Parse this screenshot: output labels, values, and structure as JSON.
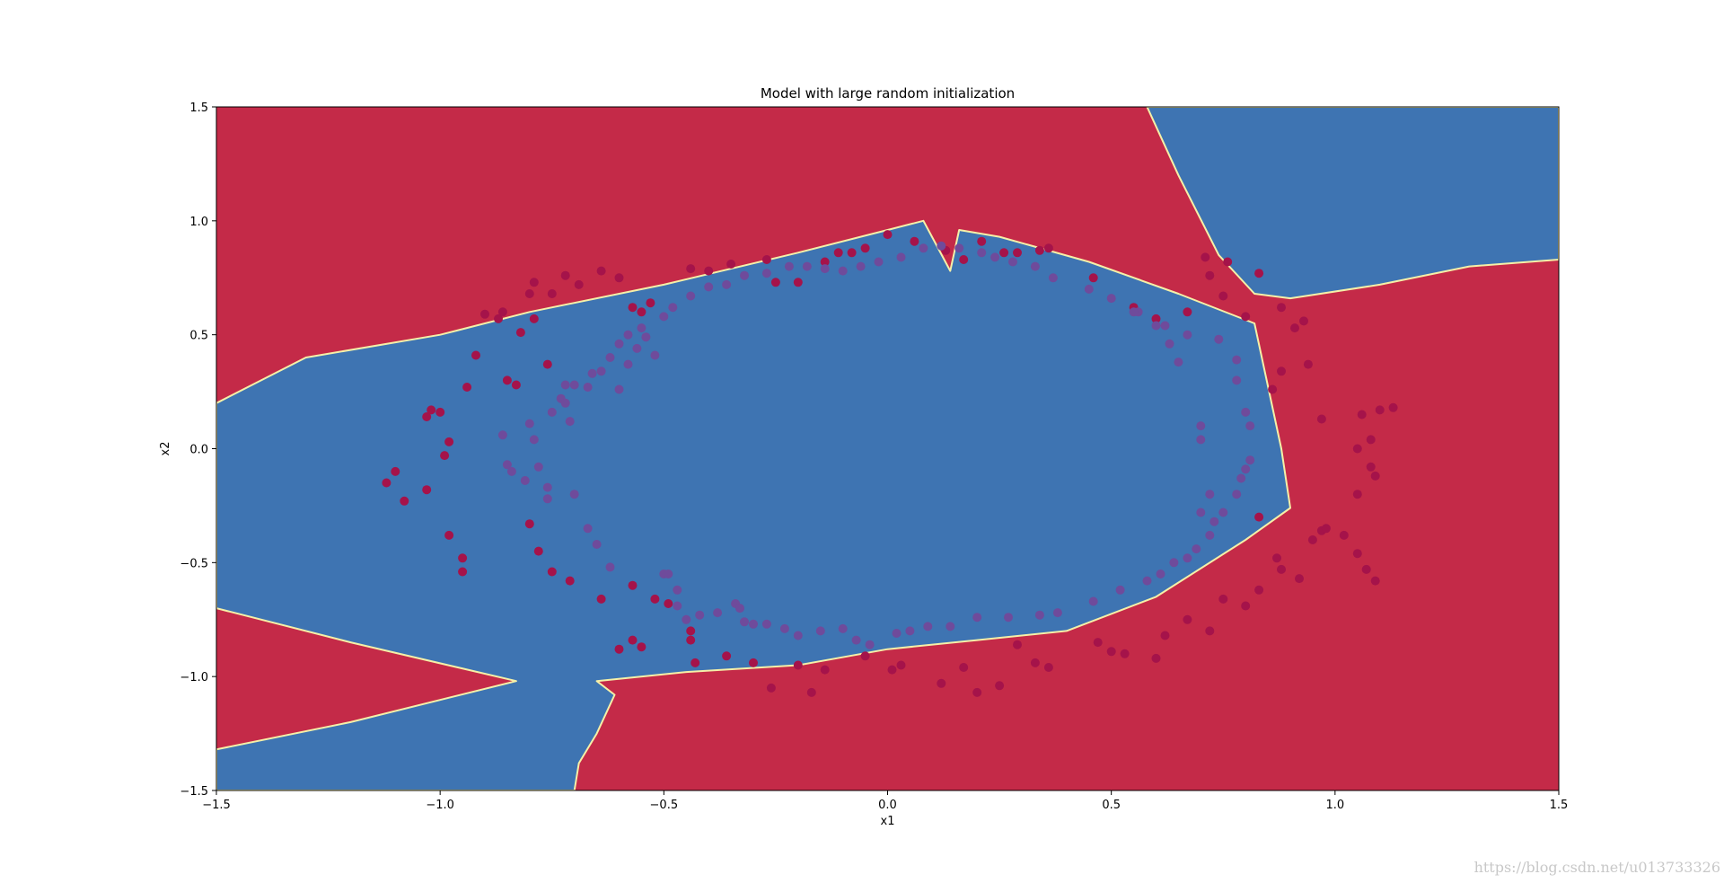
{
  "chart_data": {
    "type": "scatter",
    "title": "Model with large random initialization",
    "xlabel": "x1",
    "ylabel": "x2",
    "xlim": [
      -1.5,
      1.5
    ],
    "ylim": [
      -1.5,
      1.5
    ],
    "xticks": [
      "−1.5",
      "−1.0",
      "−0.5",
      "0.0",
      "0.5",
      "1.0",
      "1.5"
    ],
    "yticks": [
      "1.5",
      "1.0",
      "0.5",
      "0.0",
      "−0.5",
      "−1.0",
      "−1.5"
    ],
    "grid": false,
    "background_class_color": "#C42A48",
    "region_class_color": "#3E74B2",
    "boundary_color": "#F5F0A8",
    "decision_regions": [
      {
        "class": 1,
        "polygon": [
          [
            -1.5,
            0.2
          ],
          [
            -1.3,
            0.4
          ],
          [
            -1.0,
            0.5
          ],
          [
            -0.8,
            0.6
          ],
          [
            -0.5,
            0.72
          ],
          [
            -0.2,
            0.86
          ],
          [
            0.0,
            0.96
          ],
          [
            0.08,
            1.0
          ],
          [
            0.14,
            0.78
          ],
          [
            0.16,
            0.96
          ],
          [
            0.25,
            0.93
          ],
          [
            0.45,
            0.82
          ],
          [
            0.65,
            0.68
          ],
          [
            0.82,
            0.55
          ],
          [
            0.88,
            0.0
          ],
          [
            0.9,
            -0.26
          ],
          [
            0.8,
            -0.4
          ],
          [
            0.6,
            -0.65
          ],
          [
            0.4,
            -0.8
          ],
          [
            0.2,
            -0.84
          ],
          [
            0.0,
            -0.88
          ],
          [
            -0.2,
            -0.95
          ],
          [
            -0.45,
            -0.98
          ],
          [
            -0.65,
            -1.02
          ],
          [
            -0.61,
            -1.08
          ],
          [
            -0.65,
            -1.25
          ],
          [
            -0.69,
            -1.38
          ],
          [
            -0.7,
            -1.5
          ],
          [
            -1.5,
            -1.5
          ],
          [
            -1.5,
            -1.32
          ],
          [
            -1.2,
            -1.2
          ],
          [
            -0.83,
            -1.02
          ],
          [
            -1.2,
            -0.85
          ],
          [
            -1.5,
            -0.7
          ]
        ]
      },
      {
        "class": 1,
        "polygon": [
          [
            0.58,
            1.5
          ],
          [
            1.5,
            1.5
          ],
          [
            1.5,
            0.83
          ],
          [
            1.3,
            0.8
          ],
          [
            1.1,
            0.72
          ],
          [
            0.9,
            0.66
          ],
          [
            0.82,
            0.68
          ],
          [
            0.74,
            0.85
          ],
          [
            0.65,
            1.2
          ]
        ]
      }
    ],
    "series": [
      {
        "class": 0,
        "color": "#A5134A",
        "points": [
          [
            -1.1,
            -0.1
          ],
          [
            -1.12,
            -0.15
          ],
          [
            -1.08,
            -0.23
          ],
          [
            -1.03,
            -0.18
          ],
          [
            -1.03,
            0.14
          ],
          [
            -1.02,
            0.17
          ],
          [
            -1.0,
            0.16
          ],
          [
            -0.98,
            0.03
          ],
          [
            -0.99,
            -0.03
          ],
          [
            -0.98,
            -0.38
          ],
          [
            -0.95,
            -0.48
          ],
          [
            -0.95,
            -0.54
          ],
          [
            -0.92,
            0.41
          ],
          [
            -0.94,
            0.27
          ],
          [
            -0.9,
            0.59
          ],
          [
            -0.87,
            0.57
          ],
          [
            -0.86,
            0.6
          ],
          [
            -0.85,
            0.3
          ],
          [
            -0.83,
            0.28
          ],
          [
            -0.82,
            0.51
          ],
          [
            -0.79,
            0.73
          ],
          [
            -0.79,
            0.57
          ],
          [
            -0.76,
            0.37
          ],
          [
            -0.8,
            -0.33
          ],
          [
            -0.78,
            -0.45
          ],
          [
            -0.75,
            -0.54
          ],
          [
            -0.71,
            -0.58
          ],
          [
            -0.64,
            -0.66
          ],
          [
            -0.57,
            -0.6
          ],
          [
            -0.52,
            -0.66
          ],
          [
            -0.49,
            -0.68
          ],
          [
            -0.6,
            -0.88
          ],
          [
            -0.57,
            -0.84
          ],
          [
            -0.55,
            -0.87
          ],
          [
            -0.44,
            -0.8
          ],
          [
            -0.44,
            -0.84
          ],
          [
            -0.43,
            -0.94
          ],
          [
            -0.36,
            -0.91
          ],
          [
            -0.3,
            -0.94
          ],
          [
            -0.26,
            -1.05
          ],
          [
            -0.2,
            -0.95
          ],
          [
            -0.17,
            -1.07
          ],
          [
            -0.14,
            -0.97
          ],
          [
            -0.05,
            -0.91
          ],
          [
            0.01,
            -0.97
          ],
          [
            0.03,
            -0.95
          ],
          [
            0.12,
            -1.03
          ],
          [
            0.17,
            -0.96
          ],
          [
            0.2,
            -1.07
          ],
          [
            0.25,
            -1.04
          ],
          [
            0.29,
            -0.86
          ],
          [
            0.33,
            -0.94
          ],
          [
            0.36,
            -0.96
          ],
          [
            0.47,
            -0.85
          ],
          [
            0.5,
            -0.89
          ],
          [
            0.53,
            -0.9
          ],
          [
            0.6,
            -0.92
          ],
          [
            0.62,
            -0.82
          ],
          [
            0.67,
            -0.75
          ],
          [
            0.72,
            -0.8
          ],
          [
            0.75,
            -0.66
          ],
          [
            0.8,
            -0.69
          ],
          [
            0.83,
            -0.62
          ],
          [
            0.87,
            -0.48
          ],
          [
            0.88,
            -0.53
          ],
          [
            0.92,
            -0.57
          ],
          [
            0.95,
            -0.4
          ],
          [
            0.97,
            -0.36
          ],
          [
            0.98,
            -0.35
          ],
          [
            1.02,
            -0.38
          ],
          [
            1.05,
            -0.46
          ],
          [
            1.07,
            -0.53
          ],
          [
            1.09,
            -0.58
          ],
          [
            0.83,
            -0.3
          ],
          [
            0.86,
            0.26
          ],
          [
            0.88,
            0.34
          ],
          [
            0.91,
            0.53
          ],
          [
            0.93,
            0.56
          ],
          [
            0.94,
            0.37
          ],
          [
            1.05,
            -0.2
          ],
          [
            1.08,
            -0.08
          ],
          [
            1.09,
            -0.12
          ],
          [
            1.05,
            0.0
          ],
          [
            1.06,
            0.15
          ],
          [
            1.08,
            0.04
          ],
          [
            1.1,
            0.17
          ],
          [
            1.13,
            0.18
          ],
          [
            0.97,
            0.13
          ],
          [
            0.88,
            0.62
          ],
          [
            0.8,
            0.58
          ],
          [
            0.83,
            0.77
          ],
          [
            0.76,
            0.82
          ],
          [
            0.71,
            0.84
          ],
          [
            0.72,
            0.76
          ],
          [
            0.75,
            0.67
          ],
          [
            0.67,
            0.6
          ],
          [
            0.6,
            0.57
          ],
          [
            0.55,
            0.62
          ],
          [
            0.46,
            0.75
          ],
          [
            0.36,
            0.88
          ],
          [
            0.34,
            0.87
          ],
          [
            0.29,
            0.86
          ],
          [
            0.26,
            0.86
          ],
          [
            0.21,
            0.91
          ],
          [
            0.17,
            0.83
          ],
          [
            0.13,
            0.87
          ],
          [
            0.06,
            0.91
          ],
          [
            0.0,
            0.94
          ],
          [
            -0.05,
            0.88
          ],
          [
            -0.08,
            0.86
          ],
          [
            -0.11,
            0.86
          ],
          [
            -0.14,
            0.82
          ],
          [
            -0.2,
            0.73
          ],
          [
            -0.25,
            0.73
          ],
          [
            -0.27,
            0.83
          ],
          [
            -0.35,
            0.81
          ],
          [
            -0.4,
            0.78
          ],
          [
            -0.44,
            0.79
          ],
          [
            -0.53,
            0.64
          ],
          [
            -0.55,
            0.6
          ],
          [
            -0.57,
            0.62
          ],
          [
            -0.6,
            0.75
          ],
          [
            -0.64,
            0.78
          ],
          [
            -0.69,
            0.72
          ],
          [
            -0.72,
            0.76
          ],
          [
            -0.75,
            0.68
          ],
          [
            -0.8,
            0.68
          ]
        ]
      },
      {
        "class": 1,
        "color": "#6F4B9B",
        "points": [
          [
            -0.86,
            0.06
          ],
          [
            -0.85,
            -0.07
          ],
          [
            -0.81,
            -0.14
          ],
          [
            -0.8,
            0.11
          ],
          [
            -0.79,
            0.04
          ],
          [
            -0.78,
            -0.08
          ],
          [
            -0.76,
            -0.17
          ],
          [
            -0.76,
            -0.22
          ],
          [
            -0.75,
            0.16
          ],
          [
            -0.73,
            0.22
          ],
          [
            -0.72,
            0.28
          ],
          [
            -0.71,
            0.12
          ],
          [
            -0.7,
            -0.2
          ],
          [
            -0.67,
            -0.35
          ],
          [
            -0.65,
            -0.42
          ],
          [
            -0.62,
            -0.52
          ],
          [
            -0.6,
            0.26
          ],
          [
            -0.58,
            0.37
          ],
          [
            -0.56,
            0.44
          ],
          [
            -0.54,
            0.49
          ],
          [
            -0.52,
            0.41
          ],
          [
            -0.5,
            -0.55
          ],
          [
            -0.49,
            -0.55
          ],
          [
            -0.47,
            -0.62
          ],
          [
            -0.47,
            -0.69
          ],
          [
            -0.45,
            -0.75
          ],
          [
            -0.42,
            -0.73
          ],
          [
            -0.38,
            -0.72
          ],
          [
            -0.34,
            -0.68
          ],
          [
            -0.33,
            -0.7
          ],
          [
            -0.32,
            -0.76
          ],
          [
            -0.3,
            -0.77
          ],
          [
            -0.27,
            -0.77
          ],
          [
            -0.23,
            -0.79
          ],
          [
            -0.2,
            -0.82
          ],
          [
            -0.15,
            -0.8
          ],
          [
            -0.1,
            -0.79
          ],
          [
            -0.07,
            -0.84
          ],
          [
            -0.04,
            -0.86
          ],
          [
            0.02,
            -0.81
          ],
          [
            0.05,
            -0.8
          ],
          [
            0.09,
            -0.78
          ],
          [
            0.14,
            -0.78
          ],
          [
            0.2,
            -0.74
          ],
          [
            0.27,
            -0.74
          ],
          [
            0.34,
            -0.73
          ],
          [
            0.38,
            -0.72
          ],
          [
            0.46,
            -0.67
          ],
          [
            0.52,
            -0.62
          ],
          [
            0.58,
            -0.58
          ],
          [
            0.61,
            -0.55
          ],
          [
            0.64,
            -0.5
          ],
          [
            0.67,
            -0.48
          ],
          [
            0.69,
            -0.44
          ],
          [
            0.72,
            -0.38
          ],
          [
            0.73,
            -0.32
          ],
          [
            0.75,
            -0.28
          ],
          [
            0.78,
            -0.2
          ],
          [
            0.79,
            -0.13
          ],
          [
            0.8,
            -0.09
          ],
          [
            0.81,
            -0.05
          ],
          [
            0.81,
            0.1
          ],
          [
            0.8,
            0.16
          ],
          [
            0.78,
            0.3
          ],
          [
            0.78,
            0.39
          ],
          [
            0.74,
            0.48
          ],
          [
            0.67,
            0.5
          ],
          [
            0.62,
            0.54
          ],
          [
            0.56,
            0.6
          ],
          [
            0.5,
            0.66
          ],
          [
            0.45,
            0.7
          ],
          [
            0.37,
            0.75
          ],
          [
            0.33,
            0.8
          ],
          [
            0.28,
            0.82
          ],
          [
            0.24,
            0.84
          ],
          [
            0.21,
            0.86
          ],
          [
            0.16,
            0.88
          ],
          [
            0.12,
            0.89
          ],
          [
            0.08,
            0.88
          ],
          [
            0.03,
            0.84
          ],
          [
            -0.02,
            0.82
          ],
          [
            -0.06,
            0.8
          ],
          [
            -0.1,
            0.78
          ],
          [
            -0.14,
            0.79
          ],
          [
            -0.18,
            0.8
          ],
          [
            -0.22,
            0.8
          ],
          [
            -0.27,
            0.77
          ],
          [
            -0.32,
            0.76
          ],
          [
            -0.36,
            0.72
          ],
          [
            -0.4,
            0.71
          ],
          [
            -0.44,
            0.67
          ],
          [
            -0.48,
            0.62
          ],
          [
            -0.5,
            0.58
          ],
          [
            -0.55,
            0.53
          ],
          [
            -0.58,
            0.5
          ],
          [
            -0.6,
            0.46
          ],
          [
            -0.62,
            0.4
          ],
          [
            -0.64,
            0.34
          ],
          [
            -0.66,
            0.33
          ],
          [
            -0.67,
            0.27
          ],
          [
            -0.7,
            0.28
          ],
          [
            -0.72,
            0.2
          ],
          [
            -0.84,
            -0.1
          ],
          [
            0.55,
            0.6
          ],
          [
            0.6,
            0.54
          ],
          [
            0.63,
            0.46
          ],
          [
            0.65,
            0.38
          ],
          [
            0.7,
            0.1
          ],
          [
            0.7,
            0.04
          ],
          [
            0.72,
            -0.2
          ],
          [
            0.7,
            -0.28
          ]
        ]
      }
    ]
  },
  "watermark": "https://blog.csdn.net/u013733326"
}
